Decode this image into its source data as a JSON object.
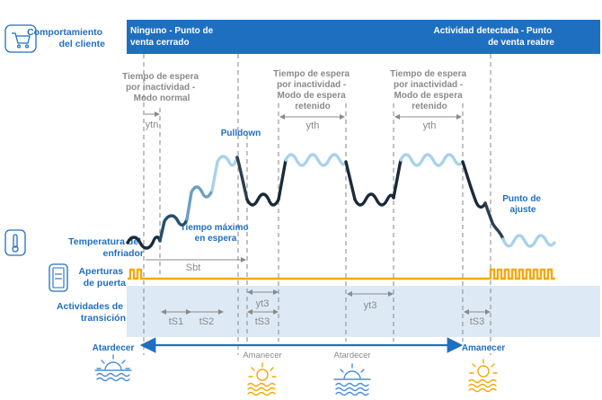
{
  "colors": {
    "banner": "#1f6fc1",
    "label_blue": "#1f6fc1",
    "transition_band": "#dde9f5",
    "door_orange": "#f4a90b",
    "dashed_grey": "#9a9a9a",
    "annotation_grey": "#8a8a8a",
    "sun_blue": "#4a90d9",
    "sun_orange": "#f4a90b",
    "curve_dark": "#1a2a3a",
    "curve_light": "#a9d2ea"
  },
  "left_labels": {
    "customer_behavior": [
      "Comportamiento",
      "del cliente"
    ],
    "cooler_temperature": [
      "Temperatura del",
      "enfriador"
    ],
    "door_openings": [
      "Aperturas",
      "de puerta"
    ],
    "transition_activities": [
      "Actividades de",
      "transición"
    ]
  },
  "icons": {
    "customer": "shopping-cart-icon",
    "temperature": "thermometer-icon",
    "door": "cooler-door-icon",
    "sunset": "sunset-over-water-icon",
    "sunrise": "sunrise-over-water-icon"
  },
  "banner": {
    "left": [
      "Ninguno - Punto de",
      "venta cerrado"
    ],
    "right": [
      "Actividad detectada - Punto",
      "de venta reabre"
    ]
  },
  "annotations": {
    "normal_wait": [
      "Tiempo de espera",
      "por inactividad -",
      "Modo normal"
    ],
    "retained_wait_1": [
      "Tiempo de espera",
      "por inactividad -",
      "Modo de espera",
      "retenido"
    ],
    "retained_wait_2": [
      "Tiempo de espera",
      "por inactividad -",
      "Modo de espera",
      "retenido"
    ],
    "pulldown": "Pulldown",
    "setpoint": [
      "Punto de",
      "ajuste"
    ],
    "max_wait": [
      "Tiempo máximo",
      "en espera"
    ],
    "ytn": "ytn",
    "yth_1": "yth",
    "yth_2": "yth",
    "sbt": "Sbt",
    "yt3_1": "yt3",
    "yt3_2": "yt3",
    "ts1": "tS1",
    "ts2": "tS2",
    "ts3_1": "tS3",
    "ts3_2": "tS3"
  },
  "timeline": {
    "sunset": "Atardecer",
    "sunrise_1": "Amanecer",
    "sunset_2": "Atardecer",
    "sunrise_2": "Amanecer"
  }
}
